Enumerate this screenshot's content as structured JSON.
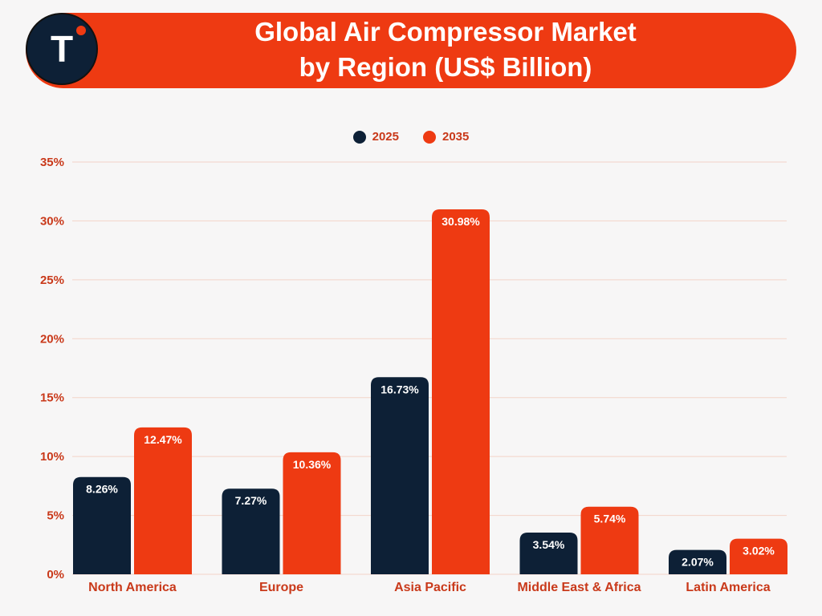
{
  "header": {
    "title_line1": "Global Air Compressor Market",
    "title_line2": "by Region (US$ Billion)",
    "logo_letter": "T"
  },
  "colors": {
    "brand_orange": "#ee3a12",
    "navy": "#0d2036",
    "axis_text": "#c9391a",
    "grid": "#f3d3c8"
  },
  "chart_data": {
    "type": "bar",
    "categories": [
      "North America",
      "Europe",
      "Asia Pacific",
      "Middle East & Africa",
      "Latin America"
    ],
    "series": [
      {
        "name": "2025",
        "color": "#0d2036",
        "values": [
          8.26,
          7.27,
          16.73,
          3.54,
          2.07
        ],
        "labels": [
          "8.26%",
          "7.27%",
          "16.73%",
          "3.54%",
          "2.07%"
        ]
      },
      {
        "name": "2035",
        "color": "#ee3a12",
        "values": [
          12.47,
          10.36,
          30.98,
          5.74,
          3.02
        ],
        "labels": [
          "12.47%",
          "10.36%",
          "30.98%",
          "5.74%",
          "3.02%"
        ]
      }
    ],
    "ylim": [
      0,
      35
    ],
    "yticks": [
      0,
      5,
      10,
      15,
      20,
      25,
      30,
      35
    ],
    "ytick_labels": [
      "0%",
      "5%",
      "10%",
      "15%",
      "20%",
      "25%",
      "30%",
      "35%"
    ],
    "grid": true,
    "legend_position": "top-center"
  }
}
